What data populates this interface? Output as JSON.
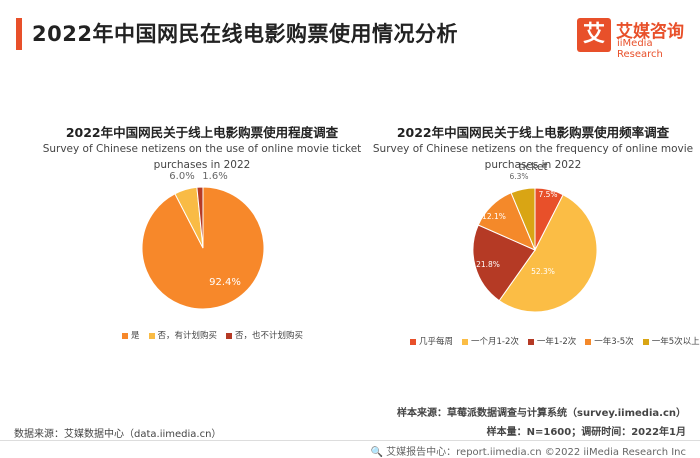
{
  "header": {
    "title": "2022年中国网民在线电影购票使用情况分析",
    "logo_char": "艾",
    "logo_cn": "艾媒咨询",
    "logo_en": "iiMedia Research"
  },
  "chart_data": [
    {
      "type": "pie",
      "title": "2022年中国网民关于线上电影购票使用程度调查",
      "subtitle_line1": "Survey of Chinese netizens on the use of online movie ticket",
      "subtitle_line2": "purchases in 2022",
      "categories": [
        "是",
        "否，有计划购买",
        "否，也不计划购买"
      ],
      "values": [
        92.4,
        6.0,
        1.6
      ],
      "labels": [
        "92.4%",
        "6.0%",
        "1.6%"
      ],
      "colors": [
        "#f7882a",
        "#f9bb45",
        "#b53a25"
      ],
      "legend": "bottom"
    },
    {
      "type": "pie",
      "title": "2022年中国网民关于线上电影购票使用频率调查",
      "subtitle_line1": "Survey of Chinese netizens on the frequency of online movie ticket",
      "subtitle_line2": "purchases in 2022",
      "categories": [
        "几乎每周",
        "一个月1-2次",
        "一年1-2次",
        "一年3-5次",
        "一年5次以上"
      ],
      "values": [
        7.5,
        52.3,
        21.8,
        12.1,
        6.3
      ],
      "labels": [
        "7.5%",
        "52.3%",
        "21.8%",
        "12.1%",
        "6.3%"
      ],
      "colors": [
        "#e8502a",
        "#fbbd45",
        "#b53a25",
        "#f4892a",
        "#d9a514"
      ],
      "legend": "bottom"
    }
  ],
  "footer": {
    "data_source": "数据来源：艾媒数据中心（data.iimedia.cn）",
    "sample_source": "样本来源：草莓派数据调查与计算系统（survey.iimedia.cn）",
    "sample_size": "样本量：N=1600；调研时间：2022年1月",
    "copyright": "🔍 艾媒报告中心：report.iimedia.cn  ©2022  iiMedia Research  Inc"
  }
}
